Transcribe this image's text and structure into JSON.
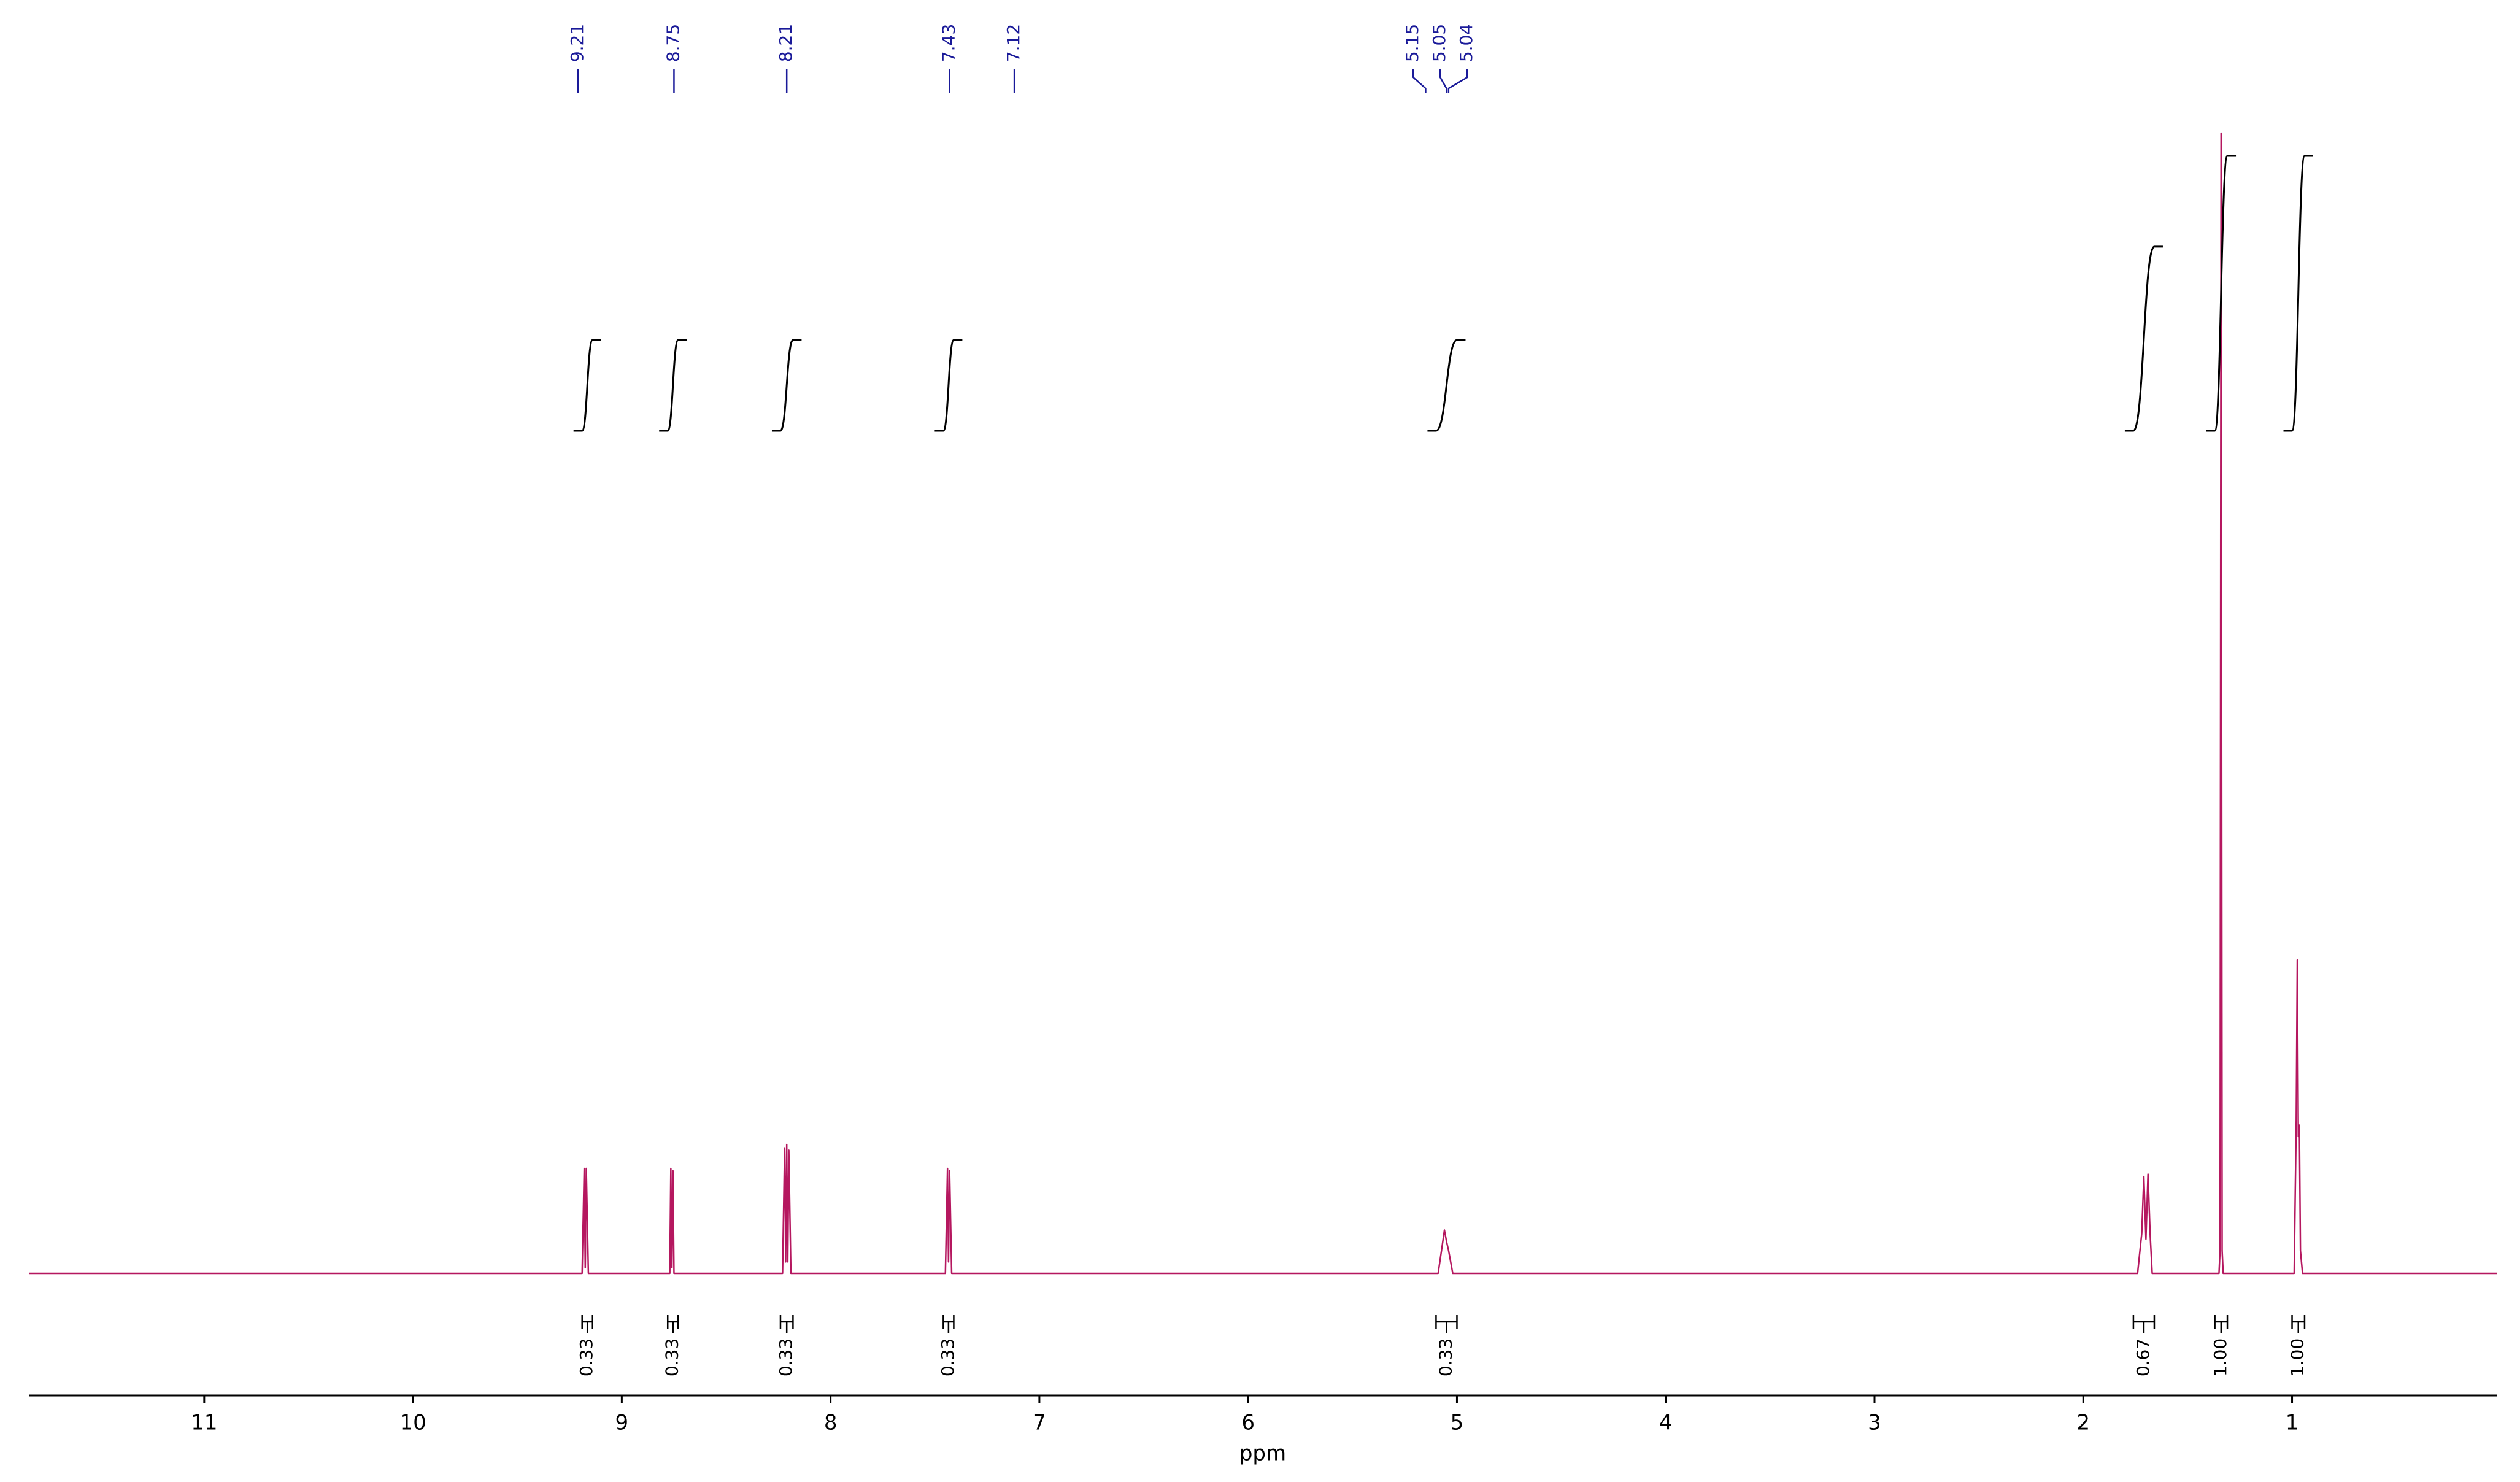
{
  "chart_data": {
    "type": "nmr",
    "x_label": "ppm",
    "xlim": [
      11.84,
      0.02
    ],
    "xticks": [
      11,
      10,
      9,
      8,
      7,
      6,
      5,
      4,
      3,
      2,
      1
    ],
    "ylim": [
      0,
      100
    ],
    "spectrum": {
      "color": "#b5175f",
      "x": [
        11.84,
        9.19,
        9.18,
        9.175,
        9.17,
        9.16,
        8.77,
        8.765,
        8.76,
        8.755,
        8.75,
        8.23,
        8.22,
        8.215,
        8.21,
        8.205,
        8.2,
        8.19,
        7.45,
        7.44,
        7.435,
        7.43,
        7.42,
        5.09,
        5.07,
        5.06,
        5.05,
        5.04,
        5.02,
        1.74,
        1.72,
        1.71,
        1.7,
        1.69,
        1.68,
        1.67,
        1.35,
        1.345,
        1.34,
        1.335,
        1.33,
        0.99,
        0.98,
        0.975,
        0.97,
        0.965,
        0.96,
        0.95,
        0.02
      ],
      "values": [
        0,
        0,
        9.2,
        0.5,
        9.2,
        0,
        0,
        9.2,
        0.5,
        9.0,
        0,
        0,
        11.0,
        1,
        11.3,
        1,
        10.8,
        0,
        0,
        9.2,
        1,
        9.0,
        0,
        0,
        2.5,
        3.8,
        2.8,
        2.0,
        0,
        0,
        3.5,
        8.5,
        3,
        8.7,
        3.5,
        0,
        0,
        2,
        100,
        2,
        0,
        0,
        13.5,
        27.5,
        12,
        13,
        2,
        0,
        0
      ]
    },
    "peak_labels": [
      9.21,
      8.75,
      8.21,
      7.43,
      7.12,
      5.15,
      5.05,
      5.04
    ],
    "peak_label_color": "#1a1a99",
    "integrals": {
      "color": "#000000",
      "ranges": [
        [
          9.19,
          9.14
        ],
        [
          8.78,
          8.73
        ],
        [
          8.24,
          8.18
        ],
        [
          7.46,
          7.41
        ],
        [
          5.1,
          5.0
        ],
        [
          1.76,
          1.66
        ],
        [
          1.37,
          1.31
        ],
        [
          1.0,
          0.94
        ]
      ],
      "values": [
        0.33,
        0.33,
        0.33,
        0.33,
        0.33,
        0.67,
        1,
        1
      ],
      "value_labels": [
        "0.33",
        "0.33",
        "0.33",
        "0.33",
        "0.33",
        "0.67",
        "1.00",
        "1.00"
      ]
    }
  }
}
